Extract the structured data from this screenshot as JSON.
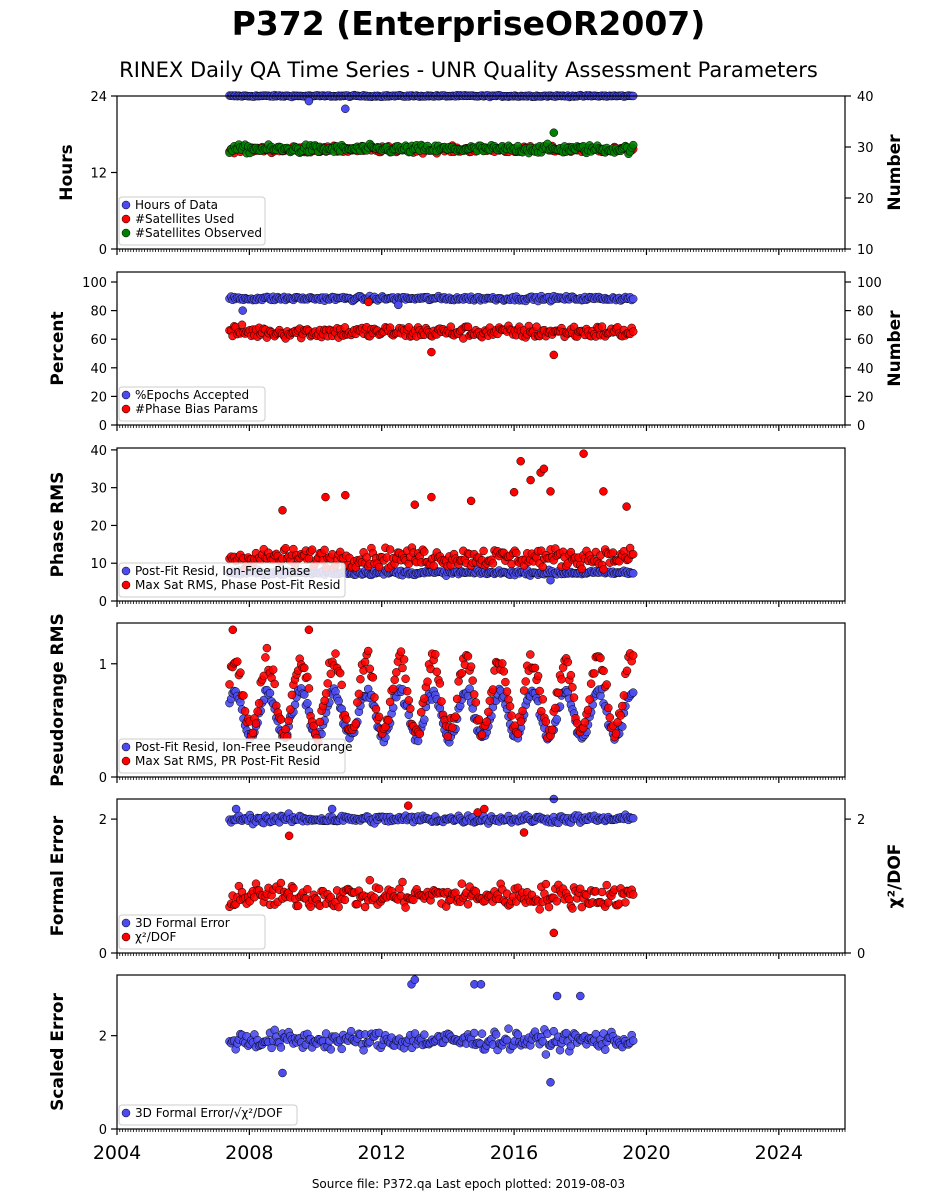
{
  "figure": {
    "title": "P372 (EnterpriseOR2007)",
    "subtitle": "RINEX Daily QA Time Series - UNR Quality Assessment Parameters",
    "footer": "Source file: P372.qa Last epoch plotted: 2019-08-03",
    "colors": {
      "blue": "#4b4bf0",
      "red": "#ff0000",
      "green": "#008000",
      "edge": "#000000"
    }
  },
  "chart_data": [
    {
      "type": "scatter",
      "xlim": [
        2004,
        2026
      ],
      "xticks": [
        2004,
        2008,
        2012,
        2016,
        2020,
        2024
      ],
      "grid": false,
      "legend_position": "lower-left",
      "left_axis": {
        "label": "Hours",
        "ylim": [
          0,
          24
        ],
        "ticks": [
          0,
          12,
          24
        ]
      },
      "right_axis": {
        "label": "Number",
        "ylim": [
          10,
          40
        ],
        "ticks": [
          10,
          20,
          30,
          40
        ]
      },
      "series": [
        {
          "name": "Hours of Data",
          "color": "#4b4bf0",
          "axis": "left",
          "x_range": [
            2007.4,
            2019.6
          ],
          "base": 24,
          "noise": 0.12,
          "outliers": [
            [
              2009.8,
              23.2
            ],
            [
              2010.9,
              22.0
            ]
          ]
        },
        {
          "name": "#Satellites Used",
          "color": "#ff0000",
          "axis": "right",
          "x_range": [
            2007.4,
            2019.6
          ],
          "base": 29.5,
          "noise": 0.6,
          "outliers": [
            [
              2009.8,
              30.0
            ]
          ]
        },
        {
          "name": "#Satellites Observed",
          "color": "#008000",
          "axis": "right",
          "x_range": [
            2007.4,
            2019.6
          ],
          "base": 29.6,
          "noise": 0.8,
          "outliers": [
            [
              2017.2,
              32.8
            ]
          ]
        }
      ]
    },
    {
      "type": "scatter",
      "xlim": [
        2004,
        2026
      ],
      "xticks": [
        2004,
        2008,
        2012,
        2016,
        2020,
        2024
      ],
      "grid": false,
      "legend_position": "lower-left",
      "left_axis": {
        "label": "Percent",
        "ylim": [
          0,
          107
        ],
        "ticks": [
          0,
          20,
          40,
          60,
          80,
          100
        ]
      },
      "right_axis": {
        "label": "Number",
        "ylim": [
          0,
          107
        ],
        "ticks": [
          0,
          20,
          40,
          60,
          80,
          100
        ]
      },
      "series": [
        {
          "name": "%Epochs Accepted",
          "color": "#4b4bf0",
          "axis": "left",
          "x_range": [
            2007.4,
            2019.6
          ],
          "base": 88.5,
          "noise": 1.5,
          "outliers": [
            [
              2007.8,
              80.0
            ],
            [
              2012.5,
              84.0
            ]
          ]
        },
        {
          "name": "#Phase Bias Params",
          "color": "#ff0000",
          "axis": "right",
          "x_range": [
            2007.4,
            2019.6
          ],
          "base": 65,
          "noise": 4.5,
          "outliers": [
            [
              2013.5,
              51.0
            ],
            [
              2017.2,
              49.0
            ],
            [
              2011.6,
              86.0
            ]
          ]
        }
      ]
    },
    {
      "type": "scatter",
      "xlim": [
        2004,
        2026
      ],
      "xticks": [
        2004,
        2008,
        2012,
        2016,
        2020,
        2024
      ],
      "grid": false,
      "legend_position": "lower-left",
      "left_axis": {
        "label": "Phase RMS",
        "ylim": [
          0,
          40.5
        ],
        "ticks": [
          0,
          10,
          20,
          30,
          40
        ]
      },
      "series": [
        {
          "name": "Post-Fit Resid, Ion-Free Phase",
          "color": "#4b4bf0",
          "axis": "left",
          "x_range": [
            2007.4,
            2019.6
          ],
          "base": 7.5,
          "noise": 0.6,
          "outliers": [
            [
              2017.1,
              5.5
            ]
          ]
        },
        {
          "name": "Max Sat RMS, Phase Post-Fit Resid",
          "color": "#ff0000",
          "axis": "left",
          "x_range": [
            2007.4,
            2019.6
          ],
          "base": 11.5,
          "noise": 2.5,
          "outliers": [
            [
              2010.3,
              27.5
            ],
            [
              2010.9,
              28.0
            ],
            [
              2013.5,
              27.5
            ],
            [
              2014.7,
              26.5
            ],
            [
              2016.2,
              37.0
            ],
            [
              2016.5,
              32.0
            ],
            [
              2016.8,
              34.0
            ],
            [
              2016.9,
              35.0
            ],
            [
              2017.1,
              29.0
            ],
            [
              2016.0,
              28.8
            ],
            [
              2018.1,
              39.0
            ],
            [
              2018.7,
              29.0
            ],
            [
              2019.4,
              25.0
            ],
            [
              2009.0,
              24.0
            ],
            [
              2013.0,
              25.5
            ]
          ]
        }
      ]
    },
    {
      "type": "scatter",
      "xlim": [
        2004,
        2026
      ],
      "xticks": [
        2004,
        2008,
        2012,
        2016,
        2020,
        2024
      ],
      "grid": false,
      "legend_position": "lower-left",
      "left_axis": {
        "label": "Pseudorange RMS",
        "ylim": [
          0,
          1.36
        ],
        "ticks": [
          0,
          1
        ]
      },
      "series": [
        {
          "name": "Post-Fit Resid, Ion-Free Pseudorange",
          "color": "#4b4bf0",
          "axis": "left",
          "x_range": [
            2007.4,
            2019.6
          ],
          "seasonal": [
            0.55,
            0.2,
            0.05
          ]
        },
        {
          "name": "Max Sat RMS, PR Post-Fit Resid",
          "color": "#ff0000",
          "axis": "left",
          "x_range": [
            2007.4,
            2019.6
          ],
          "seasonal": [
            0.72,
            0.32,
            0.1
          ],
          "outliers": [
            [
              2007.5,
              1.3
            ],
            [
              2009.8,
              1.3
            ]
          ]
        }
      ]
    },
    {
      "type": "scatter",
      "xlim": [
        2004,
        2026
      ],
      "xticks": [
        2004,
        2008,
        2012,
        2016,
        2020,
        2024
      ],
      "grid": false,
      "legend_position": "lower-left",
      "left_axis": {
        "label": "Formal Error",
        "ylim": [
          0,
          2.3
        ],
        "ticks": [
          0,
          2
        ]
      },
      "right_axis": {
        "label": "χ²/DOF",
        "ylim": [
          0,
          2.3
        ],
        "ticks": [
          0,
          2
        ]
      },
      "series": [
        {
          "name": "3D Formal Error",
          "color": "#4b4bf0",
          "axis": "left",
          "x_range": [
            2007.4,
            2019.6
          ],
          "base": 2.0,
          "noise": 0.06,
          "outliers": [
            [
              2017.2,
              2.3
            ],
            [
              2007.6,
              2.15
            ],
            [
              2010.5,
              2.15
            ]
          ]
        },
        {
          "name": "χ²/DOF",
          "color": "#ff0000",
          "axis": "right",
          "x_range": [
            2007.4,
            2019.6
          ],
          "base": 0.85,
          "noise": 0.18,
          "outliers": [
            [
              2012.8,
              2.2
            ],
            [
              2014.9,
              2.1
            ],
            [
              2015.1,
              2.15
            ],
            [
              2017.2,
              0.3
            ],
            [
              2009.2,
              1.75
            ],
            [
              2016.3,
              1.8
            ]
          ]
        }
      ]
    },
    {
      "type": "scatter",
      "xlim": [
        2004,
        2026
      ],
      "xticks": [
        2004,
        2008,
        2012,
        2016,
        2020,
        2024
      ],
      "xticklabels": [
        "2004",
        "2008",
        "2012",
        "2016",
        "2020",
        "2024"
      ],
      "grid": false,
      "legend_position": "lower-left",
      "left_axis": {
        "label": "Scaled Error",
        "ylim": [
          0,
          3.3
        ],
        "ticks": [
          0,
          2
        ]
      },
      "series": [
        {
          "name": "3D Formal Error/√χ²/DOF",
          "color": "#4b4bf0",
          "axis": "left",
          "x_range": [
            2007.4,
            2019.6
          ],
          "base": 1.9,
          "noise": 0.2,
          "outliers": [
            [
              2012.9,
              3.1
            ],
            [
              2013.0,
              3.2
            ],
            [
              2014.8,
              3.1
            ],
            [
              2015.0,
              3.1
            ],
            [
              2017.1,
              1.0
            ],
            [
              2009.0,
              1.2
            ],
            [
              2017.3,
              2.85
            ],
            [
              2018.0,
              2.85
            ]
          ]
        }
      ]
    }
  ]
}
